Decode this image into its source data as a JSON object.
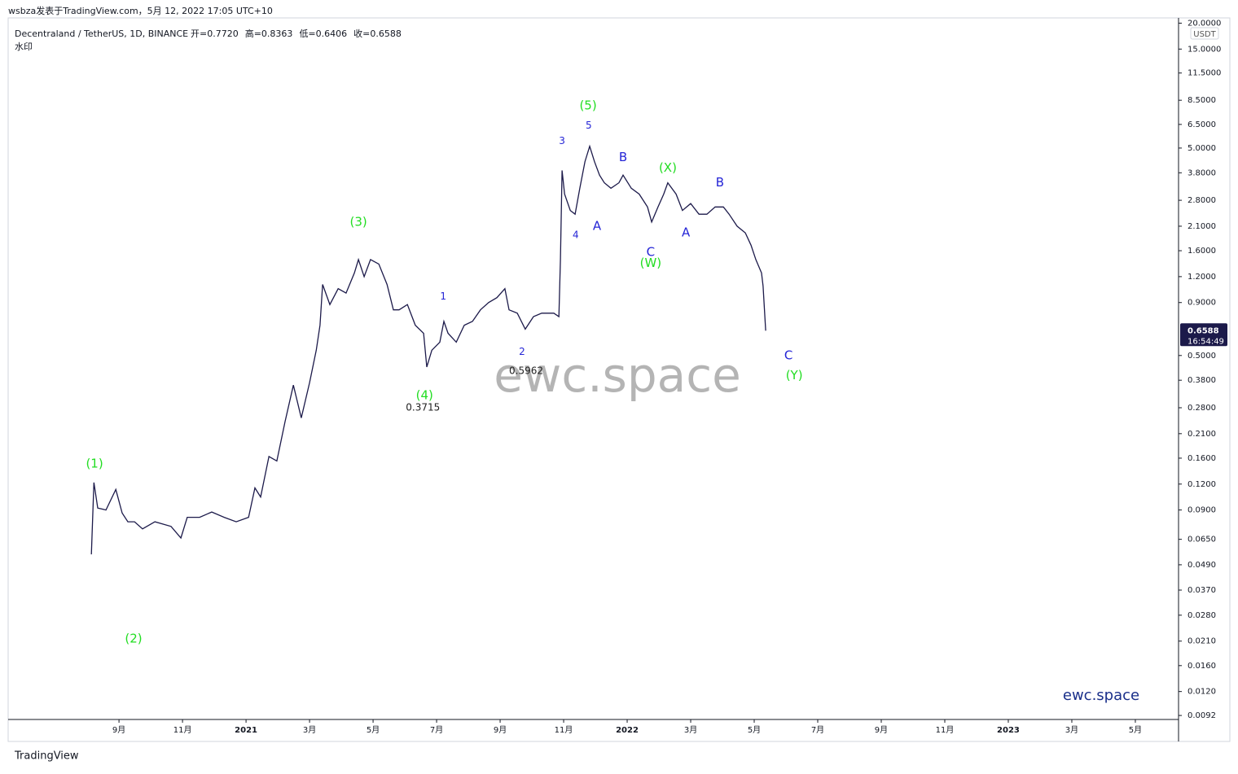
{
  "header": {
    "published": "wsbza发表于TradingView.com，5月 12, 2022 17:05 UTC+10"
  },
  "chart_data": {
    "type": "line",
    "title": "Decentraland / TetherUS, 1D, BINANCE",
    "ohlc": [
      "开=0.7720",
      "高=0.8363",
      "低=0.6406",
      "收=0.6588"
    ],
    "subtitle": "水印",
    "currency": "USDT",
    "watermark": "ewc.space",
    "brand": "ewc.space",
    "log_scale": true,
    "xlim": [
      5.51,
      42.36
    ],
    "ylim": [
      0.0088,
      21.2
    ],
    "xticks": [
      {
        "value": 9,
        "label": "9月"
      },
      {
        "value": 11,
        "label": "11月"
      },
      {
        "value": 13,
        "label": "2021"
      },
      {
        "value": 15,
        "label": "3月"
      },
      {
        "value": 17,
        "label": "5月"
      },
      {
        "value": 19,
        "label": "7月"
      },
      {
        "value": 21,
        "label": "9月"
      },
      {
        "value": 23,
        "label": "11月"
      },
      {
        "value": 25,
        "label": "2022"
      },
      {
        "value": 27,
        "label": "3月"
      },
      {
        "value": 29,
        "label": "5月"
      },
      {
        "value": 31,
        "label": "7月"
      },
      {
        "value": 33,
        "label": "9月"
      },
      {
        "value": 35,
        "label": "11月"
      },
      {
        "value": 37,
        "label": "2023"
      },
      {
        "value": 39,
        "label": "3月"
      },
      {
        "value": 41,
        "label": "5月"
      }
    ],
    "yticks": [
      {
        "value": 20,
        "label": "20.0000"
      },
      {
        "value": 15,
        "label": "15.0000"
      },
      {
        "value": 11.5,
        "label": "11.5000"
      },
      {
        "value": 8.5,
        "label": "8.5000"
      },
      {
        "value": 6.5,
        "label": "6.5000"
      },
      {
        "value": 5,
        "label": "5.0000"
      },
      {
        "value": 3.8,
        "label": "3.8000"
      },
      {
        "value": 2.8,
        "label": "2.8000"
      },
      {
        "value": 2.1,
        "label": "2.1000"
      },
      {
        "value": 1.6,
        "label": "1.6000"
      },
      {
        "value": 1.2,
        "label": "1.2000"
      },
      {
        "value": 0.9,
        "label": "0.9000"
      },
      {
        "value": 0.5,
        "label": "0.5000"
      },
      {
        "value": 0.38,
        "label": "0.3800"
      },
      {
        "value": 0.28,
        "label": "0.2800"
      },
      {
        "value": 0.21,
        "label": "0.2100"
      },
      {
        "value": 0.16,
        "label": "0.1600"
      },
      {
        "value": 0.12,
        "label": "0.1200"
      },
      {
        "value": 0.09,
        "label": "0.0900"
      },
      {
        "value": 0.065,
        "label": "0.0650"
      },
      {
        "value": 0.049,
        "label": "0.0490"
      },
      {
        "value": 0.037,
        "label": "0.0370"
      },
      {
        "value": 0.028,
        "label": "0.0280"
      },
      {
        "value": 0.021,
        "label": "0.0210"
      },
      {
        "value": 0.016,
        "label": "0.0160"
      },
      {
        "value": 0.012,
        "label": "0.0120"
      },
      {
        "value": 0.0092,
        "label": "0.0092"
      }
    ],
    "last_price": {
      "value": 0.6588,
      "label": "0.6588"
    },
    "countdown": "16:54:49",
    "x": [
      8.13,
      8.21,
      8.33,
      8.59,
      8.9,
      9.1,
      9.28,
      9.49,
      9.74,
      10.13,
      10.64,
      10.95,
      11.15,
      11.54,
      11.92,
      12.31,
      12.69,
      13.08,
      13.28,
      13.46,
      13.72,
      13.97,
      14.23,
      14.49,
      14.74,
      15.0,
      15.21,
      15.33,
      15.41,
      15.64,
      15.9,
      16.15,
      16.41,
      16.54,
      16.72,
      16.92,
      17.18,
      17.44,
      17.64,
      17.82,
      18.08,
      18.33,
      18.59,
      18.69,
      18.85,
      19.1,
      19.23,
      19.36,
      19.62,
      19.87,
      20.13,
      20.38,
      20.64,
      20.9,
      21.15,
      21.28,
      21.54,
      21.79,
      22.05,
      22.31,
      22.69,
      22.85,
      22.9,
      22.95,
      23.03,
      23.21,
      23.36,
      23.51,
      23.67,
      23.82,
      23.97,
      24.13,
      24.28,
      24.49,
      24.74,
      24.87,
      25.13,
      25.38,
      25.64,
      25.77,
      25.97,
      26.15,
      26.28,
      26.54,
      26.74,
      27.0,
      27.26,
      27.51,
      27.77,
      28.03,
      28.21,
      28.46,
      28.72,
      28.9,
      29.05,
      29.23,
      29.28,
      29.36
    ],
    "series": [
      {
        "color": "#1c1a4a",
        "values": [
          0.055,
          0.122,
          0.092,
          0.09,
          0.113,
          0.087,
          0.079,
          0.079,
          0.073,
          0.079,
          0.075,
          0.066,
          0.083,
          0.083,
          0.088,
          0.083,
          0.079,
          0.083,
          0.115,
          0.104,
          0.163,
          0.155,
          0.24,
          0.36,
          0.25,
          0.37,
          0.53,
          0.7,
          1.1,
          0.88,
          1.05,
          1.0,
          1.25,
          1.45,
          1.2,
          1.45,
          1.38,
          1.1,
          0.83,
          0.83,
          0.88,
          0.7,
          0.64,
          0.44,
          0.53,
          0.58,
          0.73,
          0.64,
          0.58,
          0.7,
          0.73,
          0.83,
          0.9,
          0.95,
          1.05,
          0.83,
          0.8,
          0.67,
          0.77,
          0.8,
          0.8,
          0.77,
          1.45,
          3.9,
          3.0,
          2.5,
          2.4,
          3.2,
          4.3,
          5.1,
          4.3,
          3.7,
          3.4,
          3.2,
          3.4,
          3.7,
          3.2,
          3.0,
          2.6,
          2.2,
          2.6,
          3.0,
          3.4,
          3.0,
          2.5,
          2.7,
          2.4,
          2.4,
          2.6,
          2.6,
          2.4,
          2.1,
          1.95,
          1.7,
          1.45,
          1.25,
          1.08,
          0.6588
        ]
      }
    ],
    "annotations": [
      {
        "text": "(1)",
        "x": 8.23,
        "y": 0.15,
        "color": "#22dd22"
      },
      {
        "text": "(2)",
        "x": 9.46,
        "y": 0.0215,
        "color": "#22dd22"
      },
      {
        "text": "(3)",
        "x": 16.54,
        "y": 2.2,
        "color": "#22dd22"
      },
      {
        "text": "(4)",
        "x": 18.62,
        "y": 0.32,
        "color": "#22dd22"
      },
      {
        "text": "0.3715",
        "x": 18.57,
        "y": 0.28,
        "color": "#222222"
      },
      {
        "text": "1",
        "x": 19.21,
        "y": 0.96,
        "color": "#2424d6"
      },
      {
        "text": "2",
        "x": 21.69,
        "y": 0.52,
        "color": "#2424d6"
      },
      {
        "text": "0.5962",
        "x": 21.82,
        "y": 0.42,
        "color": "#222222"
      },
      {
        "text": "3",
        "x": 22.95,
        "y": 5.4,
        "color": "#2424d6"
      },
      {
        "text": "4",
        "x": 23.38,
        "y": 1.9,
        "color": "#2424d6"
      },
      {
        "text": "5",
        "x": 23.79,
        "y": 6.4,
        "color": "#2424d6"
      },
      {
        "text": "(5)",
        "x": 23.77,
        "y": 8.0,
        "color": "#22dd22"
      },
      {
        "text": "A",
        "x": 24.05,
        "y": 2.1,
        "color": "#2424d6"
      },
      {
        "text": "B",
        "x": 24.87,
        "y": 4.5,
        "color": "#2424d6"
      },
      {
        "text": "C",
        "x": 25.74,
        "y": 1.57,
        "color": "#2424d6"
      },
      {
        "text": "(W)",
        "x": 25.74,
        "y": 1.39,
        "color": "#22dd22"
      },
      {
        "text": "(X)",
        "x": 26.28,
        "y": 4.0,
        "color": "#22dd22"
      },
      {
        "text": "A",
        "x": 26.85,
        "y": 1.95,
        "color": "#2424d6"
      },
      {
        "text": "B",
        "x": 27.92,
        "y": 3.4,
        "color": "#2424d6"
      },
      {
        "text": "C",
        "x": 30.08,
        "y": 0.5,
        "color": "#2424d6"
      },
      {
        "text": "(Y)",
        "x": 30.26,
        "y": 0.4,
        "color": "#22dd22"
      }
    ]
  },
  "footer": {
    "brand": "TradingView"
  }
}
